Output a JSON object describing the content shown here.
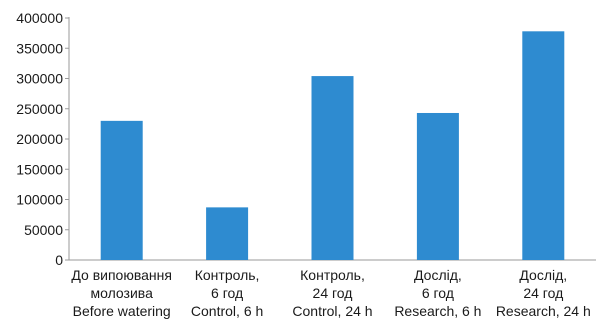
{
  "chart_data": {
    "type": "bar",
    "categories": [
      [
        "До випоювання",
        "молозива",
        "Before watering"
      ],
      [
        "Контроль,",
        "6 год",
        "Control, 6 h"
      ],
      [
        "Контроль,",
        "24 год",
        "Control, 24 h"
      ],
      [
        "Дослід,",
        "6 год",
        "Research, 6 h"
      ],
      [
        "Дослід,",
        "24 год",
        "Research, 24 h"
      ]
    ],
    "values": [
      230000,
      87000,
      304000,
      243000,
      378000
    ],
    "ylim": [
      0,
      400000
    ],
    "yticks": [
      0,
      50000,
      100000,
      150000,
      200000,
      250000,
      300000,
      350000,
      400000
    ],
    "bar_color": "#2e8bd0",
    "grid": false,
    "legend": "none"
  }
}
